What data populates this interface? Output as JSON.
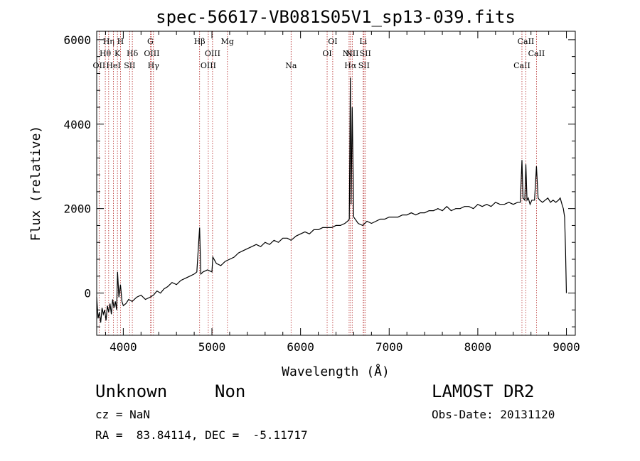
{
  "chart_data": {
    "type": "line",
    "title": "spec-56617-VB081S05V1_sp13-039.fits",
    "xlabel": "Wavelength (Å)",
    "ylabel": "Flux (relative)",
    "xlim": [
      3700,
      9100
    ],
    "ylim": [
      -1000,
      6200
    ],
    "x_ticks": [
      4000,
      5000,
      6000,
      7000,
      8000,
      9000
    ],
    "y_ticks": [
      0,
      2000,
      4000,
      6000
    ],
    "grid": false,
    "series": [
      {
        "x": [
          3700,
          3715,
          3730,
          3745,
          3760,
          3775,
          3790,
          3805,
          3820,
          3835,
          3850,
          3865,
          3880,
          3895,
          3910,
          3925,
          3935,
          3950,
          3968,
          3985,
          4000,
          4030,
          4060,
          4100,
          4150,
          4200,
          4250,
          4300,
          4340,
          4380,
          4420,
          4460,
          4500,
          4550,
          4600,
          4650,
          4700,
          4750,
          4800,
          4830,
          4861,
          4875,
          4900,
          4950,
          5000,
          5010,
          5050,
          5100,
          5150,
          5200,
          5250,
          5300,
          5350,
          5400,
          5450,
          5500,
          5550,
          5600,
          5650,
          5700,
          5750,
          5800,
          5850,
          5893,
          5950,
          6000,
          6050,
          6100,
          6150,
          6200,
          6250,
          6300,
          6350,
          6400,
          6450,
          6500,
          6530,
          6550,
          6562,
          6570,
          6583,
          6600,
          6650,
          6700,
          6750,
          6800,
          6850,
          6900,
          6950,
          7000,
          7050,
          7100,
          7150,
          7200,
          7250,
          7300,
          7350,
          7400,
          7450,
          7500,
          7550,
          7600,
          7650,
          7700,
          7750,
          7800,
          7850,
          7900,
          7950,
          8000,
          8050,
          8100,
          8150,
          8200,
          8250,
          8300,
          8350,
          8400,
          8450,
          8480,
          8498,
          8510,
          8530,
          8542,
          8555,
          8570,
          8590,
          8610,
          8640,
          8662,
          8680,
          8700,
          8730,
          8760,
          8790,
          8820,
          8850,
          8880,
          8910,
          8930,
          8950,
          8965,
          8980,
          8990,
          9000
        ],
        "y": [
          -100,
          -600,
          -450,
          -700,
          -350,
          -500,
          -400,
          -650,
          -300,
          -450,
          -250,
          -500,
          -150,
          -350,
          -200,
          -400,
          500,
          -100,
          200,
          -200,
          -300,
          -250,
          -150,
          -200,
          -100,
          -50,
          -150,
          -100,
          -50,
          50,
          0,
          100,
          150,
          250,
          200,
          300,
          350,
          400,
          450,
          500,
          1550,
          450,
          500,
          550,
          500,
          850,
          700,
          650,
          750,
          800,
          850,
          950,
          1000,
          1050,
          1100,
          1150,
          1100,
          1200,
          1150,
          1250,
          1200,
          1300,
          1300,
          1250,
          1350,
          1400,
          1450,
          1400,
          1500,
          1500,
          1550,
          1550,
          1550,
          1600,
          1600,
          1650,
          1700,
          1750,
          5100,
          2100,
          4400,
          1800,
          1650,
          1600,
          1700,
          1650,
          1700,
          1750,
          1750,
          1800,
          1800,
          1800,
          1850,
          1850,
          1900,
          1850,
          1900,
          1900,
          1950,
          1950,
          2000,
          1950,
          2050,
          1950,
          2000,
          2000,
          2050,
          2050,
          2000,
          2100,
          2050,
          2100,
          2050,
          2150,
          2100,
          2100,
          2150,
          2100,
          2150,
          2150,
          3150,
          2250,
          2200,
          3050,
          2200,
          2250,
          2100,
          2200,
          2200,
          3000,
          2250,
          2200,
          2150,
          2200,
          2250,
          2150,
          2200,
          2150,
          2200,
          2250,
          2100,
          2000,
          1800,
          1000,
          0
        ]
      }
    ],
    "lines": [
      {
        "label": "OII",
        "x": 3727,
        "row": 3
      },
      {
        "label": "Hθ",
        "x": 3797,
        "row": 2
      },
      {
        "label": "Hη",
        "x": 3835,
        "row": 1
      },
      {
        "label": "HeI",
        "x": 3889,
        "row": 3
      },
      {
        "label": "K",
        "x": 3934,
        "row": 2
      },
      {
        "label": "H",
        "x": 3968,
        "row": 1
      },
      {
        "label": "SII",
        "x": 4072,
        "row": 3
      },
      {
        "label": "Hδ",
        "x": 4102,
        "row": 2
      },
      {
        "label": "G",
        "x": 4305,
        "row": 1
      },
      {
        "label": "OIII",
        "x": 4321,
        "row": 2
      },
      {
        "label": "Hγ",
        "x": 4340,
        "row": 3
      },
      {
        "label": "Hβ",
        "x": 4861,
        "row": 1
      },
      {
        "label": "OIII",
        "x": 4959,
        "row": 3
      },
      {
        "label": "OIII",
        "x": 5007,
        "row": 2
      },
      {
        "label": "Mg",
        "x": 5175,
        "row": 1
      },
      {
        "label": "Na",
        "x": 5893,
        "row": 3
      },
      {
        "label": "OI",
        "x": 6300,
        "row": 2
      },
      {
        "label": "OI",
        "x": 6363,
        "row": 1
      },
      {
        "label": "NII",
        "x": 6548,
        "row": 2
      },
      {
        "label": "Hα",
        "x": 6563,
        "row": 3
      },
      {
        "label": "NII",
        "x": 6583,
        "row": 2
      },
      {
        "label": "Li",
        "x": 6707,
        "row": 1
      },
      {
        "label": "SII",
        "x": 6716,
        "row": 3
      },
      {
        "label": "SII",
        "x": 6731,
        "row": 2
      },
      {
        "label": "CaII",
        "x": 8498,
        "row": 3
      },
      {
        "label": "CaII",
        "x": 8542,
        "row": 1
      },
      {
        "label": "CaII",
        "x": 8662,
        "row": 2
      }
    ]
  },
  "info": {
    "class": "Unknown",
    "subclass": "Non",
    "survey": "LAMOST DR2",
    "cz": "cz = NaN",
    "obs_date": "Obs-Date: 20131120",
    "coords": "RA =  83.84114, DEC =  -5.11717"
  },
  "colors": {
    "line_marker": "#b22222",
    "spectrum": "#000000"
  }
}
